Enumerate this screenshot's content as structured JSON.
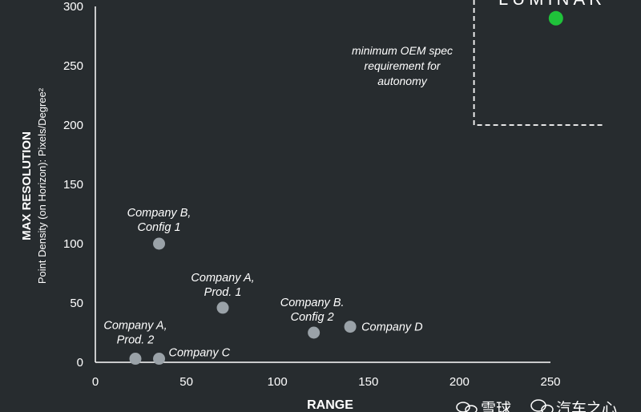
{
  "chart_data": {
    "type": "scatter",
    "xlabel": "RANGE",
    "ylabel": "MAX RESOLUTION",
    "ylabel_sub": "Point Density (on Horizon): Pixels/Degree²",
    "xlim": [
      0,
      250
    ],
    "ylim": [
      0,
      300
    ],
    "x_ticks": [
      "0",
      "50",
      "100",
      "150",
      "200",
      "250"
    ],
    "y_ticks": [
      "0",
      "50",
      "100",
      "150",
      "200",
      "250",
      "300"
    ],
    "grid": false,
    "points": [
      {
        "label_lines": [
          "Company B,",
          "Config 1"
        ],
        "x": 35,
        "y": 100,
        "color": "#9aa2a8"
      },
      {
        "label_lines": [
          "Company A,",
          "Prod. 1"
        ],
        "x": 70,
        "y": 46,
        "color": "#9aa2a8"
      },
      {
        "label_lines": [
          "Company B.",
          "Config 2"
        ],
        "x": 120,
        "y": 25,
        "color": "#9aa2a8"
      },
      {
        "label_lines": [
          "Company D"
        ],
        "x": 140,
        "y": 30,
        "color": "#9aa2a8"
      },
      {
        "label_lines": [
          "Company A,",
          "Prod. 2"
        ],
        "x": 22,
        "y": 3,
        "color": "#9aa2a8"
      },
      {
        "label_lines": [
          "Company C"
        ],
        "x": 35,
        "y": 3,
        "color": "#9aa2a8"
      },
      {
        "label_lines": [],
        "x": 253,
        "y": 290,
        "color": "#1fc23a"
      }
    ],
    "region": {
      "x_from": 208,
      "y_from": 200,
      "label_lines": [
        "minimum OEM spec",
        "requirement for",
        "autonomy"
      ]
    }
  },
  "branding": {
    "logo_text": "LUMINAR",
    "watermark_1": "雪球",
    "watermark_2": "汽车之心"
  }
}
